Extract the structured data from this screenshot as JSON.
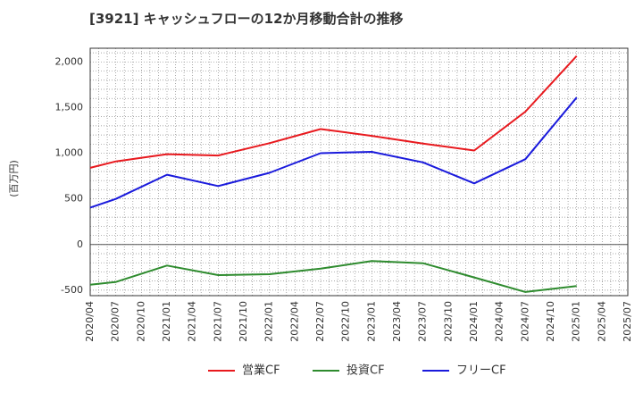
{
  "chart_data": {
    "type": "line",
    "title": "[3921]  キャッシュフローの12か月移動合計の推移",
    "ylabel": "(百万円)",
    "xlabel": "",
    "ylim": [
      -560,
      2150
    ],
    "yticks": [
      -500,
      0,
      500,
      1000,
      1500,
      2000
    ],
    "ytick_labels": [
      "-500",
      "0",
      "500",
      "1,000",
      "1,500",
      "2,000"
    ],
    "x_ticks": [
      "2020/04",
      "2020/07",
      "2020/10",
      "2021/01",
      "2021/04",
      "2021/07",
      "2021/10",
      "2022/01",
      "2022/04",
      "2022/07",
      "2022/10",
      "2023/01",
      "2023/04",
      "2023/07",
      "2023/10",
      "2024/01",
      "2024/04",
      "2024/07",
      "2024/10",
      "2025/01",
      "2025/04",
      "2025/07"
    ],
    "grid": true,
    "legend_position": "bottom",
    "series": [
      {
        "name": "営業CF",
        "color": "#e8191e",
        "points": [
          [
            "2020/04",
            840
          ],
          [
            "2020/07",
            910
          ],
          [
            "2021/01",
            990
          ],
          [
            "2021/07",
            975
          ],
          [
            "2022/01",
            1110
          ],
          [
            "2022/07",
            1265
          ],
          [
            "2023/01",
            1190
          ],
          [
            "2023/07",
            1105
          ],
          [
            "2024/01",
            1030
          ],
          [
            "2024/07",
            1455
          ],
          [
            "2025/01",
            2065
          ]
        ]
      },
      {
        "name": "投資CF",
        "color": "#2e8b2e",
        "points": [
          [
            "2020/04",
            -440
          ],
          [
            "2020/07",
            -410
          ],
          [
            "2021/01",
            -230
          ],
          [
            "2021/07",
            -335
          ],
          [
            "2022/01",
            -325
          ],
          [
            "2022/07",
            -265
          ],
          [
            "2023/01",
            -180
          ],
          [
            "2023/07",
            -205
          ],
          [
            "2024/01",
            -360
          ],
          [
            "2024/07",
            -520
          ],
          [
            "2025/01",
            -455
          ]
        ]
      },
      {
        "name": "フリーCF",
        "color": "#1a1adc",
        "points": [
          [
            "2020/04",
            405
          ],
          [
            "2020/07",
            500
          ],
          [
            "2021/01",
            765
          ],
          [
            "2021/07",
            640
          ],
          [
            "2022/01",
            785
          ],
          [
            "2022/07",
            1000
          ],
          [
            "2023/01",
            1015
          ],
          [
            "2023/07",
            900
          ],
          [
            "2024/01",
            670
          ],
          [
            "2024/07",
            935
          ],
          [
            "2025/01",
            1610
          ]
        ]
      }
    ]
  }
}
